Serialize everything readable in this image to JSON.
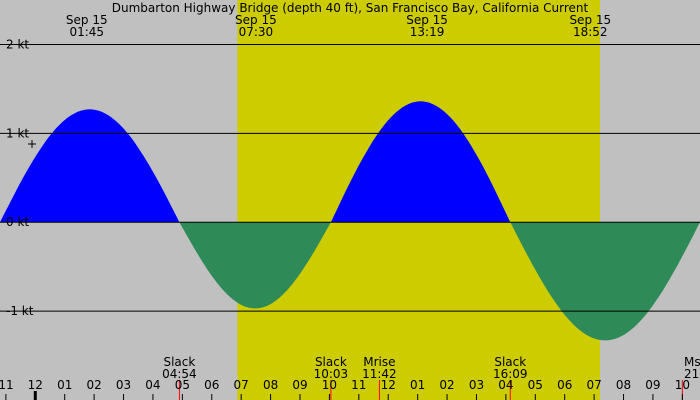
{
  "chart_data": {
    "type": "area",
    "title": "Dumbarton Highway Bridge (depth 40 ft), San Francisco Bay, California Current",
    "unit": "kt",
    "ylim": [
      -2.0,
      2.5
    ],
    "xlim": [
      -1.2,
      22.6
    ],
    "y_ticks": [
      {
        "value": 2,
        "label": "2 kt"
      },
      {
        "value": 1,
        "label": "1 kt"
      },
      {
        "value": 0,
        "label": "0 kt"
      },
      {
        "value": -1,
        "label": "-1 kt"
      }
    ],
    "hour_ticks": [
      {
        "hour": -1,
        "label": "11"
      },
      {
        "hour": 0,
        "label": "12"
      },
      {
        "hour": 1,
        "label": "01"
      },
      {
        "hour": 2,
        "label": "02"
      },
      {
        "hour": 3,
        "label": "03"
      },
      {
        "hour": 4,
        "label": "04"
      },
      {
        "hour": 5,
        "label": "05"
      },
      {
        "hour": 6,
        "label": "06"
      },
      {
        "hour": 7,
        "label": "07"
      },
      {
        "hour": 8,
        "label": "08"
      },
      {
        "hour": 9,
        "label": "09"
      },
      {
        "hour": 10,
        "label": "10"
      },
      {
        "hour": 11,
        "label": "11"
      },
      {
        "hour": 12,
        "label": "12"
      },
      {
        "hour": 13,
        "label": "01"
      },
      {
        "hour": 14,
        "label": "02"
      },
      {
        "hour": 15,
        "label": "03"
      },
      {
        "hour": 16,
        "label": "04"
      },
      {
        "hour": 17,
        "label": "05"
      },
      {
        "hour": 18,
        "label": "06"
      },
      {
        "hour": 19,
        "label": "07"
      },
      {
        "hour": 20,
        "label": "08"
      },
      {
        "hour": 21,
        "label": "09"
      },
      {
        "hour": 22,
        "label": "10"
      }
    ],
    "daylight": {
      "start": 6.87,
      "end": 19.2
    },
    "extremes": [
      {
        "date": "Sep 15",
        "time": "01:45",
        "hour": 1.75,
        "value": 1.27
      },
      {
        "date": "Sep 15",
        "time": "07:30",
        "hour": 7.5,
        "value": -0.97
      },
      {
        "date": "Sep 15",
        "time": "13:19",
        "hour": 13.32,
        "value": 1.36
      },
      {
        "date": "Sep 15",
        "time": "18:52",
        "hour": 18.87,
        "value": -1.33
      }
    ],
    "events": [
      {
        "name": "Slack",
        "time": "04:54",
        "hour": 4.9
      },
      {
        "name": "Slack",
        "time": "10:03",
        "hour": 10.05
      },
      {
        "name": "Mrise",
        "time": "11:42",
        "hour": 11.7
      },
      {
        "name": "Slack",
        "time": "16:09",
        "hour": 16.15
      },
      {
        "name": "Ms",
        "time": "21:",
        "hour": 22.0
      }
    ],
    "slack_hours": [
      -1.2,
      4.9,
      10.05,
      16.15,
      22.6
    ],
    "colors": {
      "flood": "#0000ff",
      "ebb": "#2e8b57",
      "daylight": "#cccc00",
      "night": "#c0c0c0",
      "event_marker": "#ff0000"
    }
  }
}
